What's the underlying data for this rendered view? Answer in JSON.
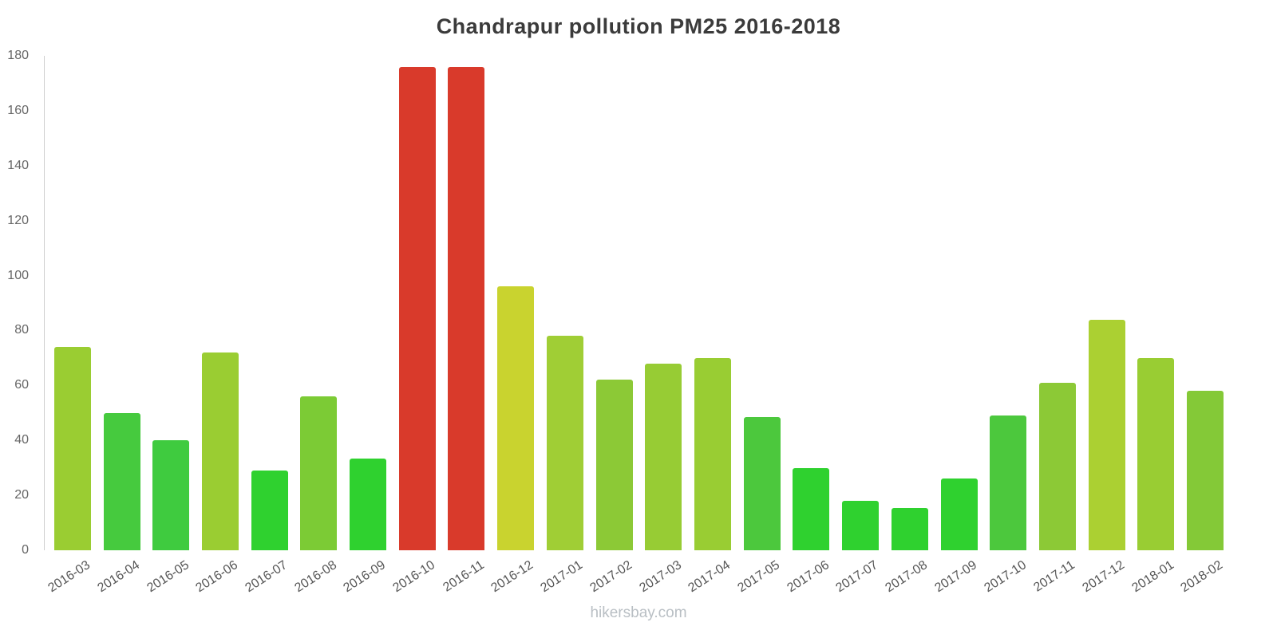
{
  "title": "Chandrapur pollution PM25 2016-2018",
  "watermark": "hikersbay.com",
  "chart_data": {
    "type": "bar",
    "title": "Chandrapur pollution PM25 2016-2018",
    "categories": [
      "2016-03",
      "2016-04",
      "2016-05",
      "2016-06",
      "2016-07",
      "2016-08",
      "2016-09",
      "2016-10",
      "2016-11",
      "2016-12",
      "2017-01",
      "2017-02",
      "2017-03",
      "2017-04",
      "2017-05",
      "2017-06",
      "2017-07",
      "2017-08",
      "2017-09",
      "2017-10",
      "2017-11",
      "2017-12",
      "2018-01",
      "2018-02"
    ],
    "values": [
      74,
      50,
      40,
      72,
      29,
      56,
      33.5,
      176,
      176,
      96,
      78,
      62,
      68,
      70,
      48.5,
      30,
      18,
      15.5,
      26,
      49,
      61,
      84,
      70,
      58
    ],
    "bar_colors": [
      "#9acd32",
      "#46ca3e",
      "#3fcb3f",
      "#9acd32",
      "#2fd12f",
      "#7ccb35",
      "#2fd12f",
      "#d93a2b",
      "#d93a2b",
      "#c9d32f",
      "#a0ce35",
      "#8cc936",
      "#97cc34",
      "#99cd33",
      "#4cc83d",
      "#2fd12f",
      "#2fd12f",
      "#2fd12f",
      "#2fd12f",
      "#4cc83d",
      "#8cc936",
      "#abd032",
      "#99cd33",
      "#84c937"
    ],
    "xlabel": "",
    "ylabel": "",
    "ylim": [
      0,
      180
    ],
    "yticks": [
      0,
      20,
      40,
      60,
      80,
      100,
      120,
      140,
      160,
      180
    ],
    "grid": false,
    "legend": false
  }
}
